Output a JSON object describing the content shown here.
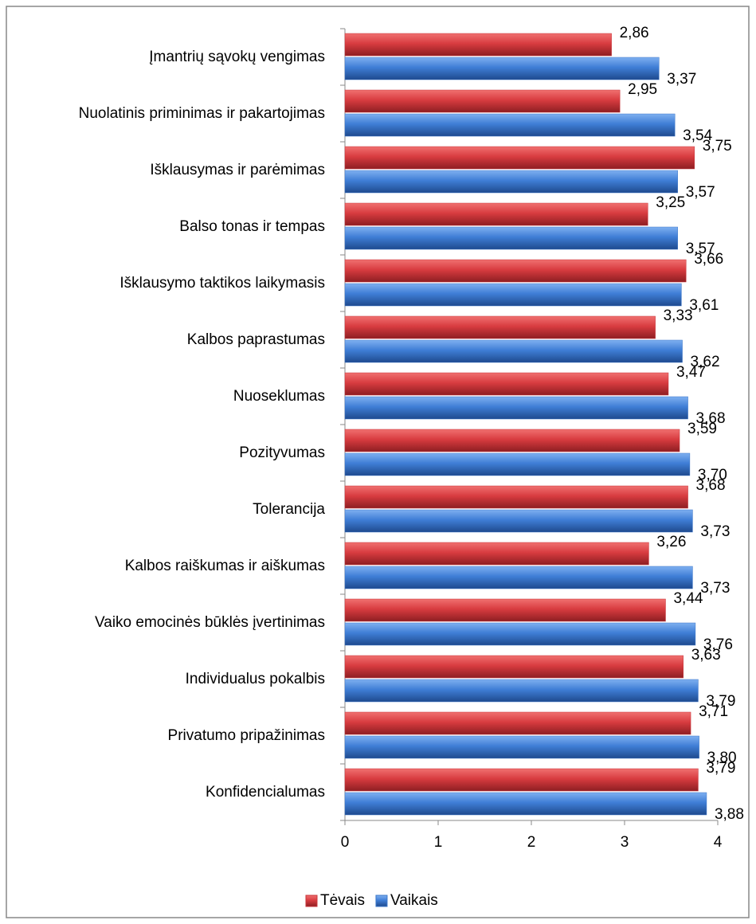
{
  "chart_data": {
    "type": "bar",
    "orientation": "horizontal",
    "categories": [
      "Įmantrių sąvokų vengimas",
      "Nuolatinis priminimas ir pakartojimas",
      "Išklausymas ir parėmimas",
      "Balso tonas ir tempas",
      "Išklausymo taktikos laikymasis",
      "Kalbos paprastumas",
      "Nuoseklumas",
      "Pozityvumas",
      "Tolerancija",
      "Kalbos raiškumas ir aiškumas",
      "Vaiko emocinės būklės įvertinimas",
      "Individualus pokalbis",
      "Privatumo pripažinimas",
      "Konfidencialumas"
    ],
    "series": [
      {
        "name": "Tėvais",
        "color": "#c8343a",
        "values": [
          2.86,
          2.95,
          3.75,
          3.25,
          3.66,
          3.33,
          3.47,
          3.59,
          3.68,
          3.26,
          3.44,
          3.63,
          3.71,
          3.79
        ],
        "value_labels": [
          "2,86",
          "2,95",
          "3,75",
          "3,25",
          "3,66",
          "3,33",
          "3,47",
          "3,59",
          "3,68",
          "3,26",
          "3,44",
          "3,63",
          "3,71",
          "3,79"
        ]
      },
      {
        "name": "Vaikais",
        "color": "#3a75c8",
        "values": [
          3.37,
          3.54,
          3.57,
          3.57,
          3.61,
          3.62,
          3.68,
          3.7,
          3.73,
          3.73,
          3.76,
          3.79,
          3.8,
          3.88
        ],
        "value_labels": [
          "3,37",
          "3,54",
          "3,57",
          "3,57",
          "3,61",
          "3,62",
          "3,68",
          "3,70",
          "3,73",
          "3,73",
          "3,76",
          "3,79",
          "3,80",
          "3,88"
        ]
      }
    ],
    "xlim": [
      0,
      4
    ],
    "xticks": [
      0,
      1,
      2,
      3,
      4
    ],
    "legend": "bottom"
  }
}
